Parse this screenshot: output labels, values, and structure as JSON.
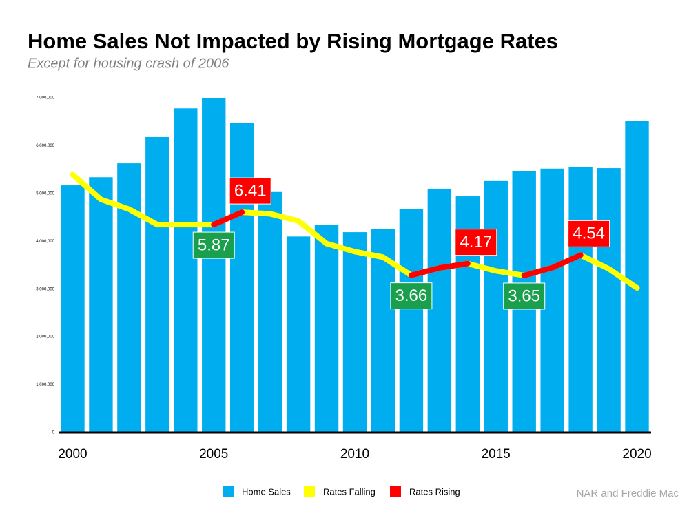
{
  "chart_data": {
    "type": "bar",
    "title": "Home Sales Not Impacted by Rising Mortgage Rates",
    "subtitle": "Except for housing crash of 2006",
    "source": "NAR and Freddie Mac",
    "categories": [
      "2000",
      null,
      null,
      null,
      null,
      "2005",
      null,
      null,
      null,
      null,
      "2010",
      null,
      null,
      null,
      null,
      "2015",
      null,
      null,
      null,
      null,
      "2020"
    ],
    "ylim": [
      0,
      7000000
    ],
    "yticks": [
      0,
      {
        "value": 1000000,
        "label": "1,000,000"
      },
      {
        "value": 2000000,
        "label": "2,000,000"
      },
      {
        "value": 3000000,
        "label": "3,000,000"
      },
      {
        "value": 4000000,
        "label": "4,000,000"
      },
      {
        "value": 5000000,
        "label": "5,000,000"
      },
      {
        "value": 6000000,
        "label": "6,000,000"
      },
      {
        "value": 7000000,
        "label": "7,000,000"
      }
    ],
    "y2lim": [
      -3.2,
      11.4
    ],
    "series": [
      {
        "name": "Home Sales",
        "color": "#00aeef",
        "values": [
          5170000,
          5340000,
          5630000,
          6180000,
          6780000,
          7000000,
          6480000,
          5030000,
          4100000,
          4340000,
          4190000,
          4260000,
          4670000,
          5100000,
          4940000,
          5260000,
          5460000,
          5520000,
          5560000,
          5530000,
          6510000
        ]
      },
      {
        "name": "Rates Falling",
        "color": "#ffff00",
        "axis": "y2",
        "label_color": "#1a9f4c",
        "values": [
          8.05,
          6.97,
          6.54,
          5.87,
          5.87,
          5.87,
          6.41,
          6.34,
          6.03,
          5.04,
          4.69,
          4.45,
          3.66,
          3.98,
          4.17,
          3.85,
          3.65,
          3.99,
          4.54,
          3.94,
          3.11
        ],
        "value_labels": [
          null,
          null,
          null,
          null,
          null,
          "5.87",
          null,
          null,
          null,
          null,
          null,
          null,
          "3.66",
          null,
          null,
          null,
          "3.65",
          null,
          null,
          null,
          null
        ]
      },
      {
        "name": "Rates Rising",
        "color": "#ff0000",
        "axis": "y2",
        "label_color": "#ff0000",
        "values": [
          null,
          null,
          null,
          null,
          null,
          5.87,
          6.41,
          null,
          null,
          null,
          null,
          null,
          3.66,
          3.98,
          4.17,
          null,
          3.65,
          3.99,
          4.54,
          null,
          null
        ],
        "value_labels": [
          null,
          null,
          null,
          null,
          null,
          null,
          "6.41",
          null,
          null,
          null,
          null,
          null,
          null,
          null,
          "4.17",
          null,
          null,
          null,
          "4.54",
          null,
          null
        ]
      }
    ]
  }
}
